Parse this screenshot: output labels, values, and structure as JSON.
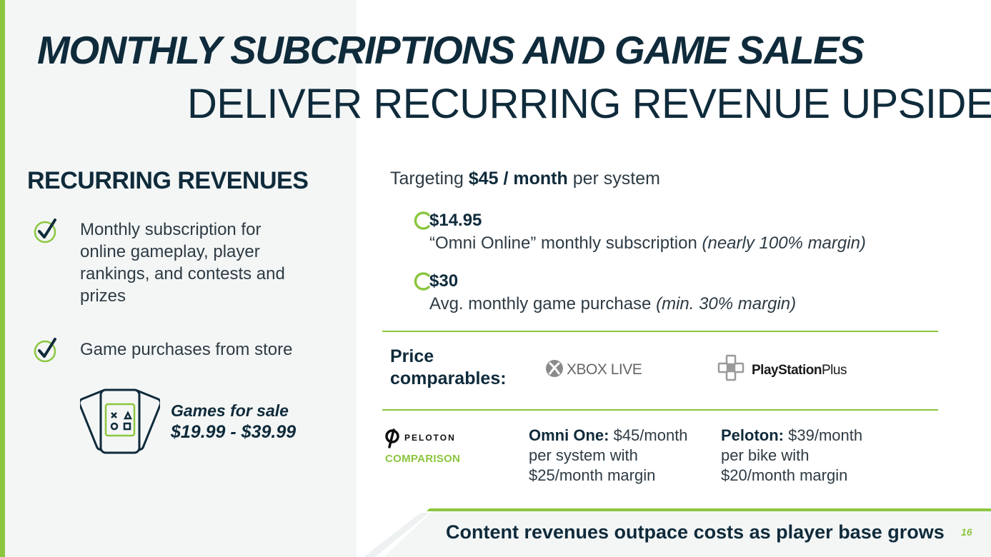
{
  "title": {
    "line1": "MONTHLY SUBCRIPTIONS AND GAME SALES",
    "line2": "DELIVER RECURRING REVENUE UPSIDE"
  },
  "recurring": {
    "heading": "RECURRING REVENUES",
    "bullets": [
      {
        "text": "Monthly subscription for online gameplay, player rankings, and contests and prizes"
      },
      {
        "text": "Game purchases from store"
      }
    ],
    "games": {
      "label": "Games for sale",
      "price": "$19.99 - $39.99"
    }
  },
  "targeting": {
    "prefix": "Targeting",
    "amount": "$45 / month",
    "suffix": "per system"
  },
  "prices": [
    {
      "amount": "$14.95",
      "desc": "“Omni Online” monthly subscription",
      "note": "(nearly 100% margin)"
    },
    {
      "amount": "$30",
      "desc": "Avg. monthly game purchase",
      "note": "(min. 30% margin)"
    }
  ],
  "comparables": {
    "label_line1": "Price",
    "label_line2": "comparables:",
    "xbox": "XBOX LIVE",
    "ps_main": "PlayStation",
    "ps_sub": "Plus"
  },
  "peloton": {
    "logo": "PELOTON",
    "comparison": "COMPARISON",
    "omni": {
      "name": "Omni One:",
      "price": "$45/month",
      "line2": "per system with",
      "line3": "$25/month margin"
    },
    "peloton": {
      "name": "Peloton:",
      "price": "$39/month",
      "line2": "per bike with",
      "line3": "$20/month margin"
    }
  },
  "footer": {
    "text": "Content revenues outpace costs as player base grows",
    "page": "16"
  },
  "colors": {
    "accent": "#8cc63f",
    "navy": "#0f2b3b",
    "text": "#2e3b44",
    "panel": "#f4f6f6"
  },
  "icons": [
    "check-circle-icon",
    "game-controller-cards-icon",
    "ring-bullet-icon",
    "xbox-logo",
    "playstation-logo",
    "peloton-logo"
  ]
}
